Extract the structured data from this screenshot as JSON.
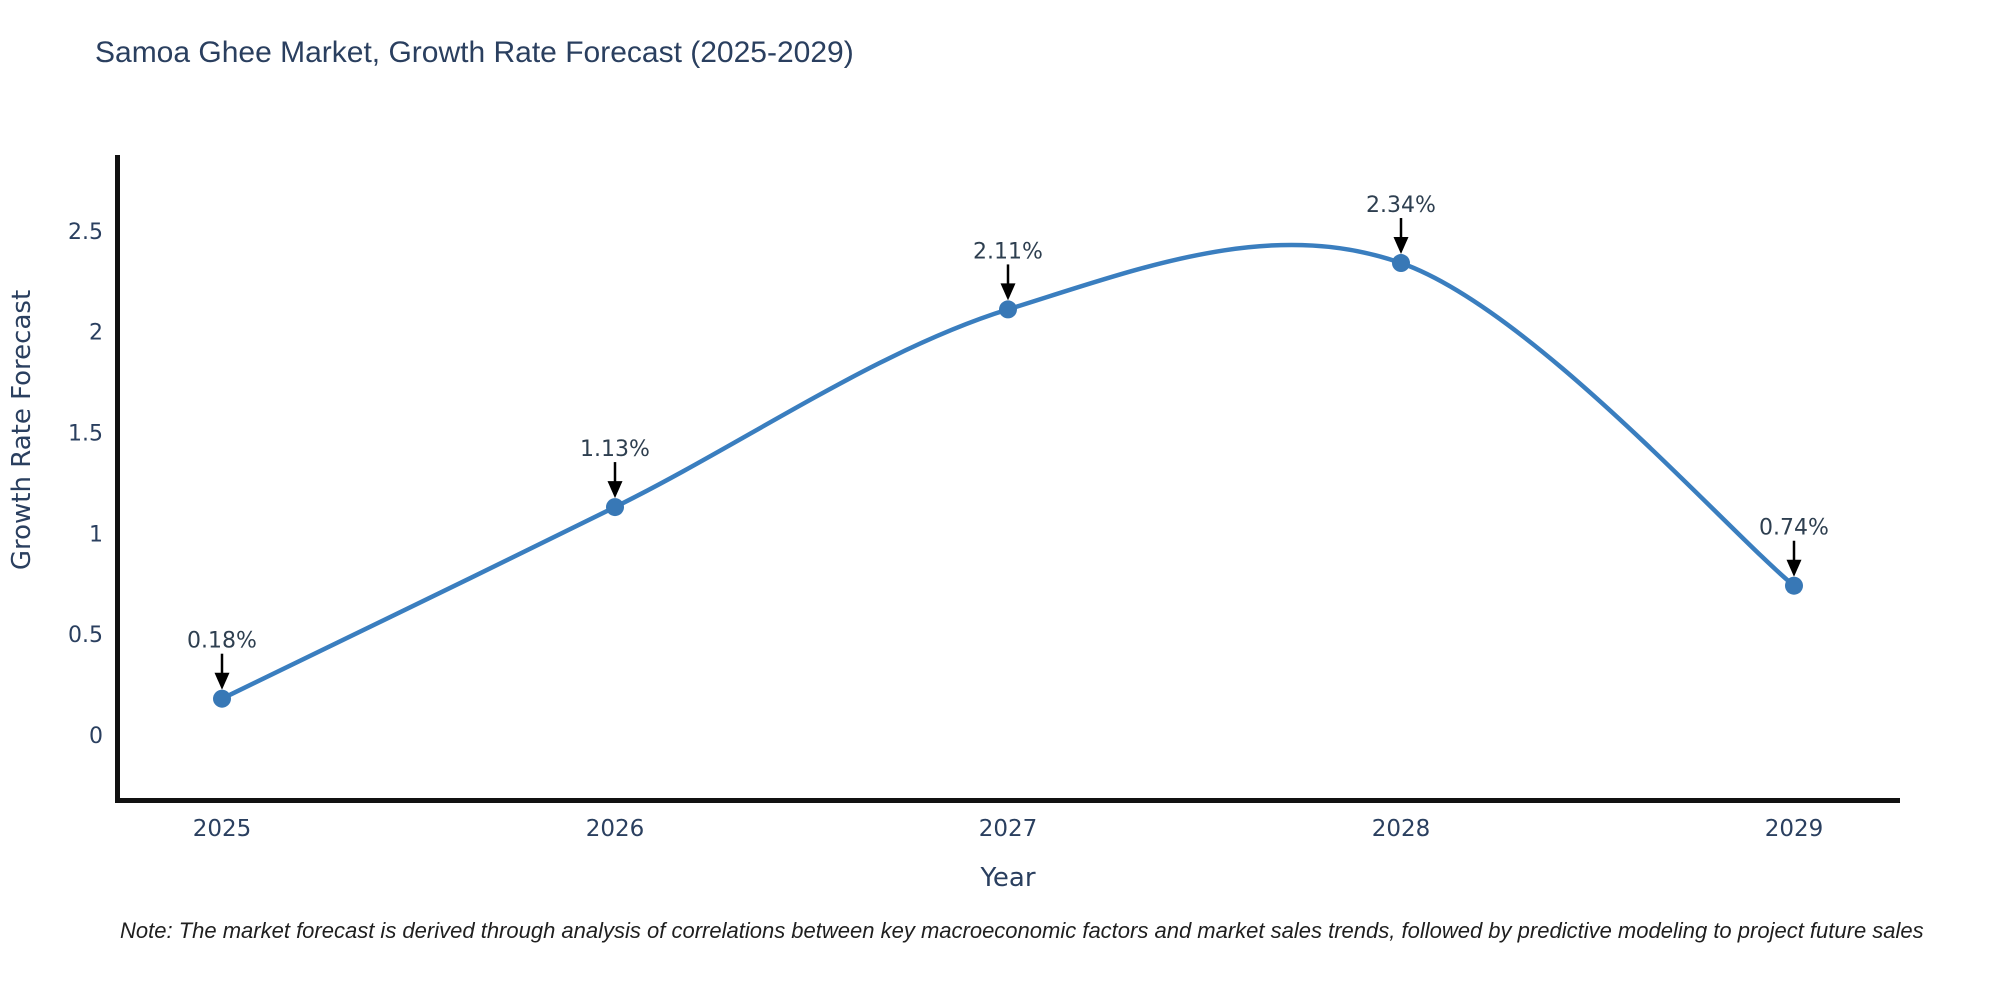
{
  "note": "Note: The market forecast is derived through analysis of correlations between key macroeconomic factors and market sales trends, followed by predictive modeling to project future sales",
  "chart_data": {
    "type": "line",
    "title": "Samoa Ghee Market, Growth Rate Forecast (2025-2029)",
    "xlabel": "Year",
    "ylabel": "Growth Rate Forecast",
    "categories": [
      "2025",
      "2026",
      "2027",
      "2028",
      "2029"
    ],
    "values": [
      0.18,
      1.13,
      2.11,
      2.34,
      0.74
    ],
    "point_labels": [
      "0.18%",
      "1.13%",
      "2.11%",
      "2.34%",
      "0.74%"
    ],
    "yticks": [
      0,
      0.5,
      1,
      1.5,
      2,
      2.5
    ],
    "ylim": [
      -0.32,
      2.9
    ],
    "line_shape": "spline",
    "grid": false,
    "legend_position": "none",
    "colors": {
      "line": "#3a7ebf",
      "marker": "#3878b6",
      "axis_line": "#111111",
      "text": "#2a3f5f",
      "annotation_text": "#2e3f50",
      "annotation_arrow": "#000000",
      "background": "#ffffff"
    }
  }
}
